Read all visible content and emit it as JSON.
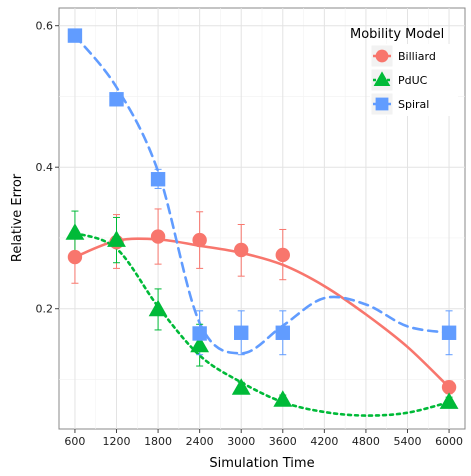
{
  "chart_data": {
    "type": "line",
    "title": "",
    "xlabel": "Simulation Time",
    "ylabel": "Relative Error",
    "x_ticks": [
      600,
      1200,
      1800,
      2400,
      3000,
      3600,
      4200,
      4800,
      5400,
      6000
    ],
    "y_ticks": [
      0.2,
      0.4,
      0.6
    ],
    "xlim": [
      370,
      6230
    ],
    "ylim": [
      0.03,
      0.625
    ],
    "grid": true,
    "legend": {
      "title": "Mobility Model",
      "position": "top-right"
    },
    "series": [
      {
        "name": "Billiard",
        "color": "#f8766d",
        "marker": "circle",
        "line_style": "solid",
        "x": [
          600,
          1200,
          1800,
          2400,
          3000,
          3600,
          6000
        ],
        "y": [
          0.273,
          0.294,
          0.302,
          0.297,
          0.283,
          0.276,
          0.089
        ],
        "y_low": [
          0.236,
          0.257,
          0.263,
          0.257,
          0.246,
          0.241,
          0.08
        ],
        "y_high": [
          0.311,
          0.333,
          0.341,
          0.337,
          0.319,
          0.312,
          0.098
        ],
        "smooth_y": [
          0.273,
          0.296,
          0.298,
          0.289,
          0.279,
          0.262,
          0.232,
          0.192,
          0.146,
          0.089
        ]
      },
      {
        "name": "PdUC",
        "color": "#00ba38",
        "marker": "triangle",
        "line_style": "dotted",
        "x": [
          600,
          1200,
          1800,
          2400,
          3000,
          3600,
          6000
        ],
        "y": [
          0.307,
          0.297,
          0.199,
          0.148,
          0.088,
          0.071,
          0.068
        ],
        "y_low": [
          0.276,
          0.265,
          0.17,
          0.119,
          0.081,
          0.064,
          0.061
        ],
        "y_high": [
          0.338,
          0.329,
          0.228,
          0.178,
          0.096,
          0.078,
          0.075
        ],
        "smooth_y": [
          0.307,
          0.285,
          0.203,
          0.134,
          0.096,
          0.068,
          0.054,
          0.049,
          0.053,
          0.068
        ]
      },
      {
        "name": "Spiral",
        "color": "#619cff",
        "marker": "square",
        "line_style": "dashed",
        "x": [
          600,
          1200,
          1800,
          2400,
          3000,
          3600,
          6000
        ],
        "y": [
          0.586,
          0.496,
          0.383,
          0.165,
          0.166,
          0.166,
          0.166
        ],
        "y_low": [
          0.586,
          0.496,
          0.37,
          0.135,
          0.135,
          0.135,
          0.135
        ],
        "y_high": [
          0.586,
          0.496,
          0.397,
          0.197,
          0.197,
          0.197,
          0.197
        ],
        "smooth_y": [
          0.586,
          0.513,
          0.394,
          0.18,
          0.137,
          0.176,
          0.215,
          0.206,
          0.175,
          0.166
        ]
      }
    ]
  }
}
